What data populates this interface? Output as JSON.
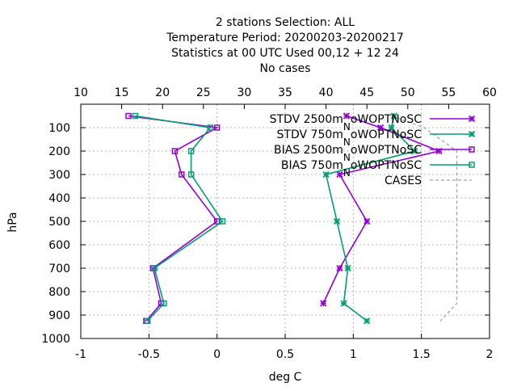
{
  "title_lines": [
    "2 stations Selection: ALL",
    "Temperature  Period: 20200203-20200217",
    "Statistics at 00 UTC  Used  00,12  + 12 24",
    "No cases"
  ],
  "colors": {
    "purple": "#9400d3",
    "green": "#009e73",
    "cases": "#a0a0a0",
    "grid": "#a0a0a0"
  },
  "chart_data": {
    "type": "line",
    "xlabel": "deg C",
    "ylabel": "hPa",
    "xlim": [
      -1,
      2
    ],
    "x_ticks": [
      "-1",
      "-0.5",
      "0",
      "0.5",
      "1",
      "1.5",
      "2"
    ],
    "x2lim": [
      10,
      60
    ],
    "x2_ticks": [
      "10",
      "15",
      "20",
      "25",
      "30",
      "35",
      "40",
      "45",
      "50",
      "55",
      "60"
    ],
    "ylim": [
      1000,
      0
    ],
    "y_ticks": [
      "100",
      "200",
      "300",
      "400",
      "500",
      "600",
      "700",
      "800",
      "900",
      "1000"
    ],
    "grid": true,
    "legend_position": "top-right",
    "series": [
      {
        "name": "STDV 2500m_NoWOPTNoSC",
        "legend_parts": [
          "STDV 2500m",
          "N",
          "oWOPTNoSC"
        ],
        "color": "purple",
        "marker": "x",
        "x": [
          0.95,
          1.2,
          1.63,
          0.9,
          1.1,
          0.9,
          0.78
        ],
        "p": [
          50,
          100,
          200,
          300,
          500,
          700,
          850
        ]
      },
      {
        "name": "STDV 750m_NoWOPTNoSC",
        "legend_parts": [
          "STDV 750m",
          "N",
          "oWOPTNoSC"
        ],
        "color": "green",
        "marker": "x",
        "x": [
          1.3,
          1.28,
          1.45,
          0.8,
          0.88,
          0.96,
          0.93,
          1.1
        ],
        "p": [
          50,
          100,
          200,
          300,
          500,
          700,
          850,
          925
        ]
      },
      {
        "name": "BIAS 2500m_NoWOPTNoSC",
        "legend_parts": [
          "BIAS 2500m",
          "N",
          "oWOPTNoSC"
        ],
        "color": "purple",
        "marker": "square",
        "x": [
          -0.65,
          0.0,
          -0.31,
          -0.26,
          0.0,
          -0.47,
          -0.41,
          -0.52
        ],
        "p": [
          50,
          100,
          200,
          300,
          500,
          700,
          850,
          925
        ]
      },
      {
        "name": "BIAS 750m_NoWOPTNoSC",
        "legend_parts": [
          "BIAS 750m",
          "N",
          "oWOPTNoSC"
        ],
        "color": "green",
        "marker": "square",
        "x": [
          -0.6,
          -0.05,
          -0.19,
          -0.19,
          0.04,
          -0.46,
          -0.39,
          -0.51
        ],
        "p": [
          50,
          100,
          200,
          300,
          500,
          700,
          850,
          925
        ]
      },
      {
        "name": "CASES",
        "legend_parts": [
          "CASES",
          "",
          ""
        ],
        "color": "cases",
        "marker": "none",
        "axis": "x2",
        "x": [
          48,
          52,
          56,
          56,
          56,
          56,
          56,
          54
        ],
        "p": [
          50,
          100,
          200,
          300,
          500,
          700,
          850,
          925
        ]
      }
    ]
  }
}
